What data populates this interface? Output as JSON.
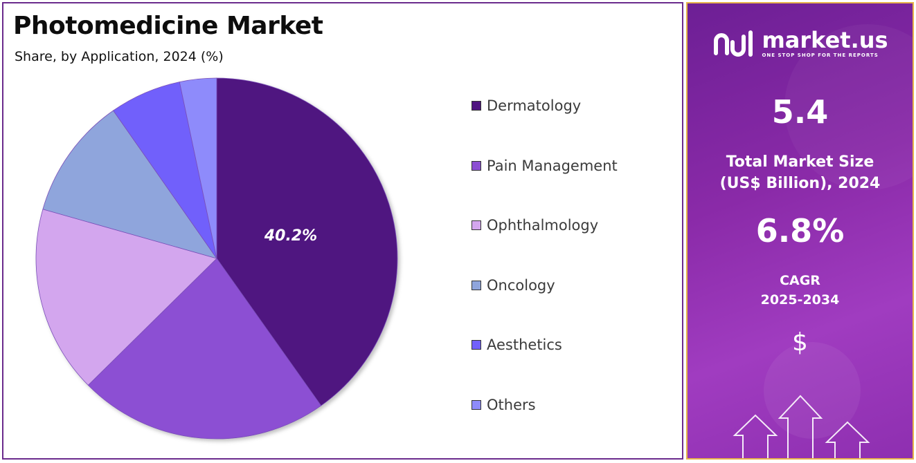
{
  "title": "Photomedicine Market",
  "subtitle": "Share, by Application, 2024 (%)",
  "chart_data": {
    "type": "pie",
    "title": "Photomedicine Market",
    "subtitle": "Share, by Application, 2024 (%)",
    "categories": [
      "Dermatology",
      "Pain Management",
      "Ophthalmology",
      "Oncology",
      "Aesthetics",
      "Others"
    ],
    "values": [
      40.2,
      22.4,
      16.8,
      10.9,
      6.4,
      3.3
    ],
    "colors": [
      "#4f1480",
      "#8c4fd3",
      "#d3a6ee",
      "#8fa5dc",
      "#7160fb",
      "#8e8bfb"
    ],
    "data_labels": [
      "40.2%",
      "",
      "",
      "",
      "",
      ""
    ],
    "start_angle_deg": 0,
    "direction": "clockwise",
    "legend_position": "right"
  },
  "side_panel": {
    "brand_name": "market.us",
    "brand_tagline": "ONE STOP SHOP FOR THE REPORTS",
    "market_size_value": "5.4",
    "market_size_label_line1": "Total Market Size",
    "market_size_label_line2": "(US$ Billion), 2024",
    "cagr_value": "6.8%",
    "cagr_label_line1": "CAGR",
    "cagr_label_line2": "2025-2034",
    "dollar_symbol": "$"
  },
  "colors": {
    "panel_border": "#6a2a8c",
    "side_border": "#e7b44a",
    "side_background": "#8a2aa8"
  },
  "icons": [
    "market-us-logo-icon",
    "dollar-icon",
    "growth-arrows-icon"
  ]
}
